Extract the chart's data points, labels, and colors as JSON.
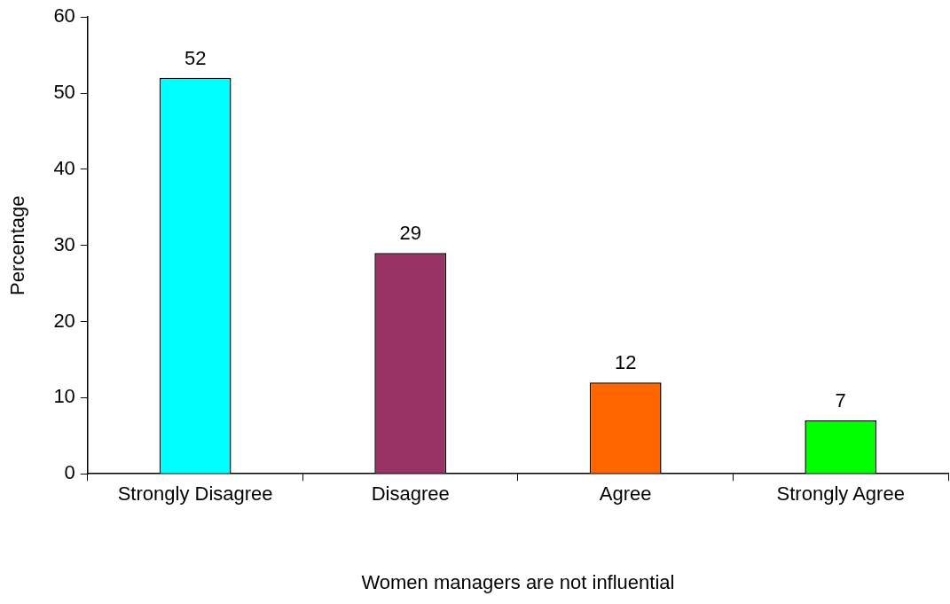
{
  "chart_data": {
    "type": "bar",
    "xlabel": "Women managers are not influential",
    "ylabel": "Percentage",
    "categories": [
      "Strongly Disagree",
      "Disagree",
      "Agree",
      "Strongly Agree"
    ],
    "values": [
      52,
      29,
      12,
      7
    ],
    "colors": [
      "#00ffff",
      "#993366",
      "#ff6600",
      "#00ff00"
    ],
    "ylim": [
      0,
      60
    ],
    "yticks": [
      0,
      10,
      20,
      30,
      40,
      50,
      60
    ],
    "grid": false,
    "legend": false,
    "data_labels": true
  }
}
